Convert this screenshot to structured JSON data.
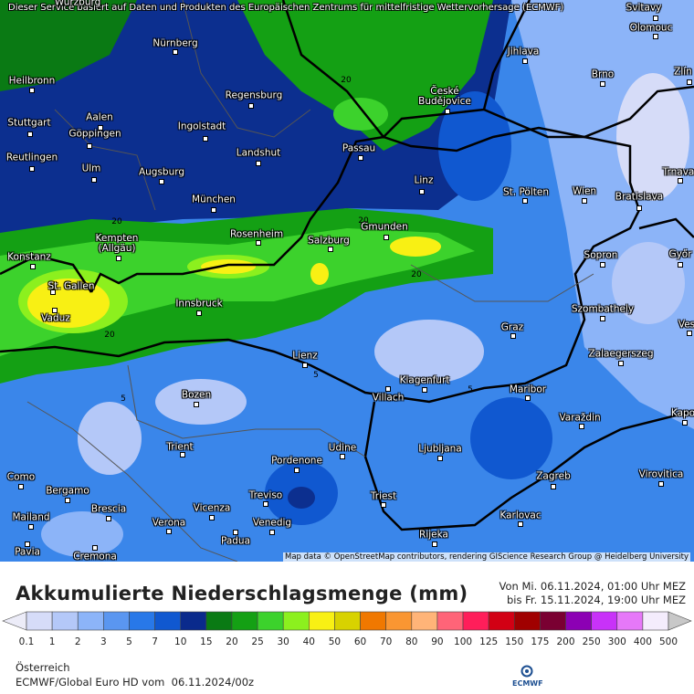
{
  "header": "Dieser Service basiert auf Daten und Produkten des Europäischen Zentrums für mittelfristige Wettervorhersage (ECMWF)",
  "attribution": "Map data © OpenStreetMap contributors, rendering GIScience Research Group @ Heidelberg University",
  "cities": [
    "Würzburg",
    "Svitavy",
    "Nürnberg",
    "Olomouc",
    "Jihlava",
    "Heilbronn",
    "Brno",
    "Zlín",
    "Regensburg",
    "České Budějovice",
    "Aalen",
    "Stuttgart",
    "Ingolstadt",
    "Göppingen",
    "Landshut",
    "Passau",
    "Reutlingen",
    "Ulm",
    "Augsburg",
    "Linz",
    "St. Pölten",
    "Wien",
    "Bratislava",
    "Trnava",
    "München",
    "Kempten (Allgäu)",
    "Rosenheim",
    "Salzburg",
    "Gmunden",
    "Sopron",
    "Győr",
    "Konstanz",
    "St. Gallen",
    "Vaduz",
    "Innsbruck",
    "Szombathely",
    "Graz",
    "Ves",
    "Lienz",
    "Zalaegerszeg",
    "Klagenfurt",
    "Maribor",
    "Villach",
    "Bozen",
    "Varaždin",
    "Kapo",
    "Trient",
    "Udine",
    "Ljubljana",
    "Pordenone",
    "Virovitica",
    "Como",
    "Zagreb",
    "Bergamo",
    "Treviso",
    "Triest",
    "Brescia",
    "Vicenza",
    "Karlovac",
    "Mailand",
    "Verona",
    "Venedig",
    "Padua",
    "Rijeka",
    "Pavia",
    "Cremona"
  ],
  "contour_labels": [
    20,
    20,
    20,
    20,
    20,
    5,
    5,
    5
  ],
  "title": "Akkumulierte Niederschlagsmenge (mm)",
  "period": [
    "Von Mi. 06.11.2024, 01:00 Uhr MEZ",
    "bis Fr. 15.11.2024, 19:00 Uhr MEZ"
  ],
  "legend": {
    "ticks": [
      0.1,
      1,
      2,
      3,
      5,
      7,
      10,
      15,
      20,
      25,
      30,
      40,
      50,
      60,
      70,
      80,
      90,
      100,
      125,
      150,
      175,
      200,
      250,
      300,
      400,
      500
    ],
    "colors": [
      "#ececf8",
      "#d6dcf8",
      "#b4c8f8",
      "#8cb4f8",
      "#5a96f0",
      "#2878e8",
      "#1058d0",
      "#0a2a8c",
      "#0a7a14",
      "#14a014",
      "#3cd22c",
      "#8cf01e",
      "#f8f014",
      "#d8d200",
      "#f07800",
      "#fa9632",
      "#ffb478",
      "#ff6478",
      "#ff1e5a",
      "#d20014",
      "#a00000",
      "#7a0032",
      "#8c00b4",
      "#c832f8",
      "#e678f8",
      "#f4ecfc",
      "#c8c8c8"
    ]
  },
  "region": "Österreich",
  "model": "ECMWF/Global Euro HD vom  06.11.2024/00z",
  "logo": "ECMWF"
}
